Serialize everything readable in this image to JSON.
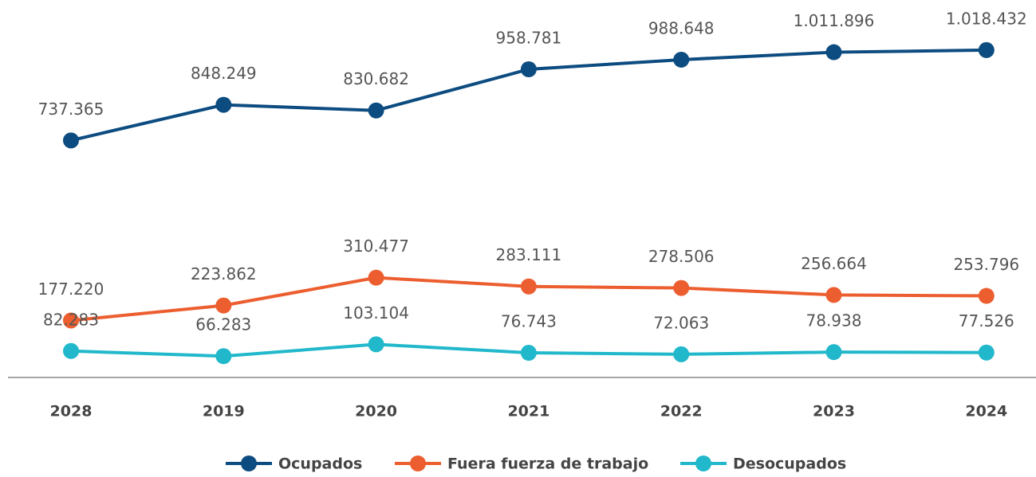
{
  "chart_data": {
    "type": "line",
    "categories": [
      "2028",
      "2019",
      "2020",
      "2021",
      "2022",
      "2023",
      "2024"
    ],
    "series": [
      {
        "name": "Ocupados",
        "color": "#0d4c80",
        "values": [
          737365,
          848249,
          830682,
          958781,
          988648,
          1011896,
          1018432
        ],
        "value_labels": [
          "737.365",
          "848.249",
          "830.682",
          "958.781",
          "988.648",
          "1.011.896",
          "1.018.432"
        ]
      },
      {
        "name": "Fuera fuerza de trabajo",
        "color": "#ec5e2f",
        "values": [
          177220,
          223862,
          310477,
          283111,
          278506,
          256664,
          253796
        ],
        "value_labels": [
          "177.220",
          "223.862",
          "310.477",
          "283.111",
          "278.506",
          "256.664",
          "253.796"
        ]
      },
      {
        "name": "Desocupados",
        "color": "#21b8cb",
        "values": [
          82283,
          66283,
          103104,
          76743,
          72063,
          78938,
          77526
        ],
        "value_labels": [
          "82.283",
          "66.283",
          "103.104",
          "76.743",
          "72.063",
          "78.938",
          "77.526"
        ]
      }
    ],
    "ylim": [
      0,
      1100000
    ],
    "legend": "bottom"
  }
}
